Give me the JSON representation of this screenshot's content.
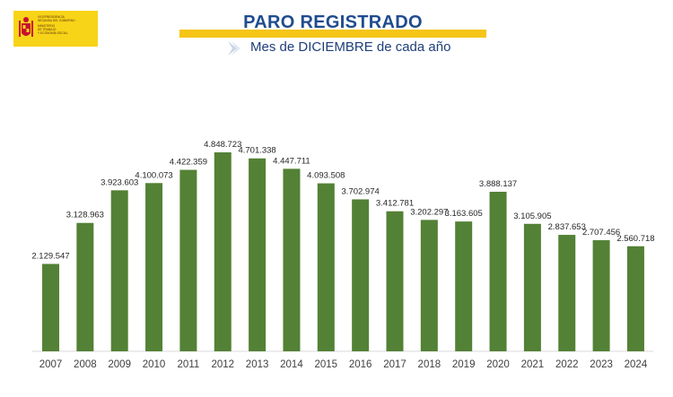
{
  "header": {
    "logo_lines": [
      "VICEPRESIDENCIA",
      "SEGUNDA DEL GOBIERNO",
      "MINISTERIO",
      "DE TRABAJO",
      "Y ECONOMÍA SOCIAL"
    ],
    "title": "PARO REGISTRADO",
    "subtitle": "Mes de DICIEMBRE de cada año"
  },
  "colors": {
    "bar": "#538135",
    "title": "#1f4c8f",
    "title_bar": "#f5c518",
    "logo_bg": "#f7d418"
  },
  "chart_data": {
    "type": "bar",
    "title": "PARO REGISTRADO",
    "subtitle": "Mes de DICIEMBRE de cada año",
    "xlabel": "",
    "ylabel": "",
    "grid": false,
    "legend": "none",
    "ylim": [
      0,
      5000000
    ],
    "categories": [
      "2007",
      "2008",
      "2009",
      "2010",
      "2011",
      "2012",
      "2013",
      "2014",
      "2015",
      "2016",
      "2017",
      "2018",
      "2019",
      "2020",
      "2021",
      "2022",
      "2023",
      "2024"
    ],
    "values": [
      2129547,
      3128963,
      3923603,
      4100073,
      4422359,
      4848723,
      4701338,
      4447711,
      4093508,
      3702974,
      3412781,
      3202297,
      3163605,
      3888137,
      3105905,
      2837653,
      2707456,
      2560718
    ],
    "data_labels": [
      "2.129.547",
      "3.128.963",
      "3.923.603",
      "4.100.073",
      "4.422.359",
      "4.848.723",
      "4.701.338",
      "4.447.711",
      "4.093.508",
      "3.702.974",
      "3.412.781",
      "3.202.297",
      "3.163.605",
      "3.888.137",
      "3.105.905",
      "2.837.653",
      "2.707.456",
      "2.560.718"
    ]
  }
}
